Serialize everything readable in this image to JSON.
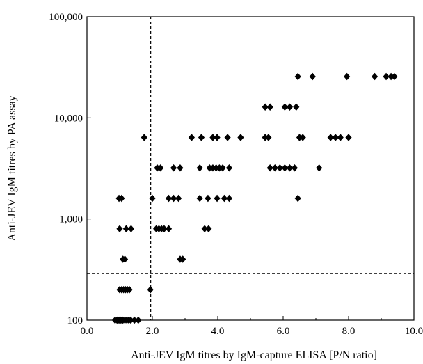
{
  "chart_data": {
    "type": "scatter",
    "title": "",
    "xlabel": "Anti-JEV IgM titres by IgM-capture ELISA [P/N ratio]",
    "ylabel": "Anti-JEV IgM titres by PA assay",
    "xlim": [
      0,
      10
    ],
    "ylim": [
      100,
      100000
    ],
    "y_scale": "log",
    "x_ticks": [
      0,
      2,
      4,
      6,
      8,
      10
    ],
    "x_tick_labels": [
      "0.0",
      "2.0",
      "4.0",
      "6.0",
      "8.0",
      "10.0"
    ],
    "y_ticks": [
      100,
      1000,
      10000,
      100000
    ],
    "y_tick_labels": [
      "100",
      "1,000",
      "10,000",
      "100,000"
    ],
    "grid": false,
    "legend": "none",
    "marker_color": "#000000",
    "reference_lines": [
      {
        "orientation": "vertical",
        "x": 1.95,
        "style": "dashed"
      },
      {
        "orientation": "horizontal",
        "y": 290,
        "style": "dashed"
      }
    ],
    "points": [
      {
        "x": 0.86,
        "y": 100
      },
      {
        "x": 0.92,
        "y": 100
      },
      {
        "x": 0.98,
        "y": 100
      },
      {
        "x": 1.04,
        "y": 100
      },
      {
        "x": 1.1,
        "y": 100
      },
      {
        "x": 1.16,
        "y": 100
      },
      {
        "x": 1.22,
        "y": 100
      },
      {
        "x": 1.28,
        "y": 100
      },
      {
        "x": 1.34,
        "y": 100
      },
      {
        "x": 1.45,
        "y": 100
      },
      {
        "x": 1.57,
        "y": 100
      },
      {
        "x": 1.0,
        "y": 200
      },
      {
        "x": 1.06,
        "y": 200
      },
      {
        "x": 1.12,
        "y": 200
      },
      {
        "x": 1.18,
        "y": 200
      },
      {
        "x": 1.24,
        "y": 200
      },
      {
        "x": 1.3,
        "y": 200
      },
      {
        "x": 1.94,
        "y": 200
      },
      {
        "x": 1.1,
        "y": 400
      },
      {
        "x": 1.16,
        "y": 400
      },
      {
        "x": 2.85,
        "y": 400
      },
      {
        "x": 2.93,
        "y": 400
      },
      {
        "x": 1.0,
        "y": 800
      },
      {
        "x": 1.2,
        "y": 800
      },
      {
        "x": 1.35,
        "y": 800
      },
      {
        "x": 2.12,
        "y": 800
      },
      {
        "x": 2.2,
        "y": 800
      },
      {
        "x": 2.28,
        "y": 800
      },
      {
        "x": 2.36,
        "y": 800
      },
      {
        "x": 2.5,
        "y": 800
      },
      {
        "x": 3.6,
        "y": 800
      },
      {
        "x": 3.72,
        "y": 800
      },
      {
        "x": 0.98,
        "y": 1600
      },
      {
        "x": 1.06,
        "y": 1600
      },
      {
        "x": 2.0,
        "y": 1600
      },
      {
        "x": 2.5,
        "y": 1600
      },
      {
        "x": 2.65,
        "y": 1600
      },
      {
        "x": 2.8,
        "y": 1600
      },
      {
        "x": 3.45,
        "y": 1600
      },
      {
        "x": 3.7,
        "y": 1600
      },
      {
        "x": 3.98,
        "y": 1600
      },
      {
        "x": 4.2,
        "y": 1600
      },
      {
        "x": 4.35,
        "y": 1600
      },
      {
        "x": 6.45,
        "y": 1600
      },
      {
        "x": 2.15,
        "y": 3200
      },
      {
        "x": 2.25,
        "y": 3200
      },
      {
        "x": 2.65,
        "y": 3200
      },
      {
        "x": 2.85,
        "y": 3200
      },
      {
        "x": 3.45,
        "y": 3200
      },
      {
        "x": 3.75,
        "y": 3200
      },
      {
        "x": 3.85,
        "y": 3200
      },
      {
        "x": 3.95,
        "y": 3200
      },
      {
        "x": 4.05,
        "y": 3200
      },
      {
        "x": 4.15,
        "y": 3200
      },
      {
        "x": 4.35,
        "y": 3200
      },
      {
        "x": 5.6,
        "y": 3200
      },
      {
        "x": 5.75,
        "y": 3200
      },
      {
        "x": 5.9,
        "y": 3200
      },
      {
        "x": 6.05,
        "y": 3200
      },
      {
        "x": 6.2,
        "y": 3200
      },
      {
        "x": 6.35,
        "y": 3200
      },
      {
        "x": 7.1,
        "y": 3200
      },
      {
        "x": 1.75,
        "y": 6400
      },
      {
        "x": 3.2,
        "y": 6400
      },
      {
        "x": 3.5,
        "y": 6400
      },
      {
        "x": 3.85,
        "y": 6400
      },
      {
        "x": 3.98,
        "y": 6400
      },
      {
        "x": 4.3,
        "y": 6400
      },
      {
        "x": 4.7,
        "y": 6400
      },
      {
        "x": 5.45,
        "y": 6400
      },
      {
        "x": 5.55,
        "y": 6400
      },
      {
        "x": 6.5,
        "y": 6400
      },
      {
        "x": 6.6,
        "y": 6400
      },
      {
        "x": 7.45,
        "y": 6400
      },
      {
        "x": 7.6,
        "y": 6400
      },
      {
        "x": 7.75,
        "y": 6400
      },
      {
        "x": 8.0,
        "y": 6400
      },
      {
        "x": 5.45,
        "y": 12800
      },
      {
        "x": 5.6,
        "y": 12800
      },
      {
        "x": 6.05,
        "y": 12800
      },
      {
        "x": 6.2,
        "y": 12800
      },
      {
        "x": 6.4,
        "y": 12800
      },
      {
        "x": 6.45,
        "y": 25600
      },
      {
        "x": 6.9,
        "y": 25600
      },
      {
        "x": 7.95,
        "y": 25600
      },
      {
        "x": 8.8,
        "y": 25600
      },
      {
        "x": 9.15,
        "y": 25600
      },
      {
        "x": 9.3,
        "y": 25600
      },
      {
        "x": 9.4,
        "y": 25600
      }
    ]
  }
}
